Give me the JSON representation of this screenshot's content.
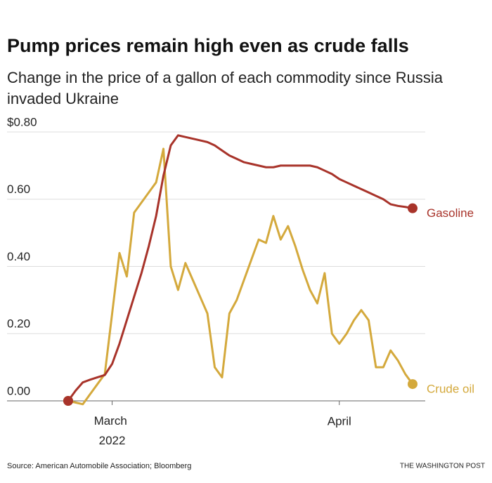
{
  "chart_data": {
    "type": "line",
    "title": "Pump prices remain high even as crude falls",
    "subtitle": "Change in the price of a gallon of each commodity since Russia invaded Ukraine",
    "source": "Source: American Automobile Association; Bloomberg",
    "credit": "THE WASHINGTON POST",
    "categories": [
      null,
      null,
      null,
      null,
      null,
      null,
      "March 2022",
      null,
      null,
      null,
      null,
      null,
      null,
      null,
      null,
      null,
      null,
      null,
      null,
      null,
      null,
      null,
      null,
      null,
      null,
      null,
      null,
      null,
      null,
      null,
      null,
      null,
      null,
      null,
      null,
      null,
      null,
      "April",
      null,
      null,
      null,
      null,
      null,
      null,
      null,
      null,
      null,
      null
    ],
    "ylim": [
      0,
      0.8
    ],
    "yticks": [
      {
        "value": 0,
        "label": "0.00"
      },
      {
        "value": 0.2,
        "label": "0.20"
      },
      {
        "value": 0.4,
        "label": "0.40"
      },
      {
        "value": 0.6,
        "label": "0.60"
      },
      {
        "value": 0.8,
        "label": "$0.80"
      }
    ],
    "grid": true,
    "series": [
      {
        "name": "Gasoline",
        "color": "#a8332a",
        "values": [
          0.0,
          0.03,
          0.055,
          0.063,
          0.07,
          0.077,
          0.11,
          0.17,
          0.24,
          0.31,
          0.38,
          0.46,
          0.55,
          0.67,
          0.76,
          0.79,
          0.785,
          0.78,
          0.775,
          0.77,
          0.76,
          0.745,
          0.73,
          0.72,
          0.71,
          0.705,
          0.7,
          0.695,
          0.695,
          0.7,
          0.7,
          0.7,
          0.7,
          0.7,
          0.695,
          0.685,
          0.675,
          0.66,
          0.65,
          0.64,
          0.63,
          0.62,
          0.61,
          0.6,
          0.585,
          0.58,
          0.577,
          0.573
        ]
      },
      {
        "name": "Crude oil",
        "color": "#d4a93c",
        "values": [
          0.0,
          -0.005,
          -0.01,
          0.02,
          0.05,
          0.08,
          0.26,
          0.44,
          0.37,
          0.56,
          0.59,
          0.62,
          0.65,
          0.75,
          0.4,
          0.33,
          0.41,
          0.36,
          0.31,
          0.26,
          0.1,
          0.07,
          0.26,
          0.3,
          0.36,
          0.42,
          0.48,
          0.47,
          0.55,
          0.48,
          0.52,
          0.46,
          0.39,
          0.33,
          0.29,
          0.38,
          0.2,
          0.17,
          0.2,
          0.24,
          0.27,
          0.24,
          0.1,
          0.1,
          0.15,
          0.12,
          0.08,
          0.05
        ]
      }
    ]
  }
}
